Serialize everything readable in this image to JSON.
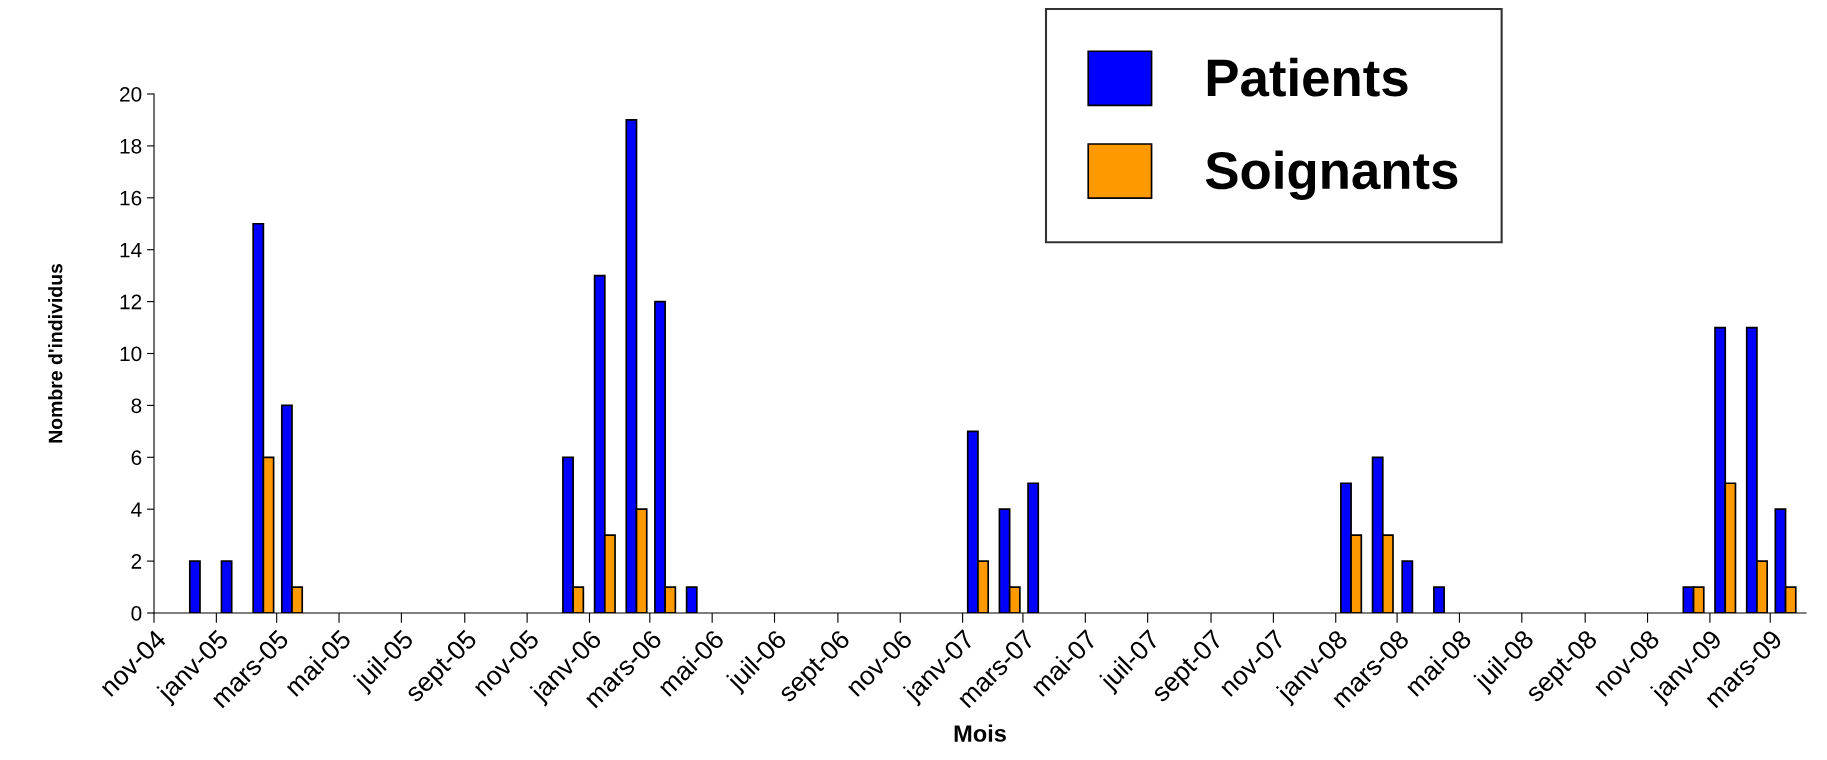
{
  "chart_data": {
    "type": "bar",
    "xlabel": "Mois",
    "ylabel": "Nombre d'individus",
    "x": [
      "2004-12-16",
      "2005-01-16",
      "2005-02-16",
      "2005-03-16",
      "2005-12-16",
      "2006-01-16",
      "2006-02-16",
      "2006-03-16",
      "2006-04-16",
      "2007-01-16",
      "2007-02-16",
      "2007-03-16",
      "2008-01-16",
      "2008-02-16",
      "2008-03-16",
      "2008-04-16",
      "2008-12-16",
      "2009-01-16",
      "2009-02-16",
      "2009-03-16"
    ],
    "series": [
      {
        "name": "Patients",
        "color": "#0000ff",
        "values": [
          2,
          2,
          15,
          8,
          6,
          13,
          19,
          12,
          1,
          7,
          4,
          5,
          5,
          6,
          2,
          1,
          1,
          11,
          11,
          4
        ]
      },
      {
        "name": "Soignants",
        "color": "#ff9900",
        "values": [
          null,
          null,
          6,
          1,
          1,
          3,
          4,
          1,
          null,
          2,
          1,
          null,
          3,
          3,
          null,
          null,
          1,
          5,
          2,
          1
        ]
      }
    ],
    "ylim": [
      0,
      20
    ],
    "yticks": [
      0,
      2,
      4,
      6,
      8,
      10,
      12,
      14,
      16,
      18,
      20
    ],
    "xlim": [
      "2004-11-01",
      "2009-04-05"
    ],
    "xticks": [
      {
        "value": "2004-11-01",
        "label": "nov-04"
      },
      {
        "value": "2005-01-01",
        "label": "janv-05"
      },
      {
        "value": "2005-03-01",
        "label": "mars-05"
      },
      {
        "value": "2005-05-01",
        "label": "mai-05"
      },
      {
        "value": "2005-07-01",
        "label": "juil-05"
      },
      {
        "value": "2005-09-01",
        "label": "sept-05"
      },
      {
        "value": "2005-11-01",
        "label": "nov-05"
      },
      {
        "value": "2006-01-01",
        "label": "janv-06"
      },
      {
        "value": "2006-03-01",
        "label": "mars-06"
      },
      {
        "value": "2006-05-01",
        "label": "mai-06"
      },
      {
        "value": "2006-07-01",
        "label": "juil-06"
      },
      {
        "value": "2006-09-01",
        "label": "sept-06"
      },
      {
        "value": "2006-11-01",
        "label": "nov-06"
      },
      {
        "value": "2007-01-01",
        "label": "janv-07"
      },
      {
        "value": "2007-03-01",
        "label": "mars-07"
      },
      {
        "value": "2007-05-01",
        "label": "mai-07"
      },
      {
        "value": "2007-07-01",
        "label": "juil-07"
      },
      {
        "value": "2007-09-01",
        "label": "sept-07"
      },
      {
        "value": "2007-11-01",
        "label": "nov-07"
      },
      {
        "value": "2008-01-01",
        "label": "janv-08"
      },
      {
        "value": "2008-03-01",
        "label": "mars-08"
      },
      {
        "value": "2008-05-01",
        "label": "mai-08"
      },
      {
        "value": "2008-07-01",
        "label": "juil-08"
      },
      {
        "value": "2008-09-01",
        "label": "sept-08"
      },
      {
        "value": "2008-11-01",
        "label": "nov-08"
      },
      {
        "value": "2009-01-01",
        "label": "janv-09"
      },
      {
        "value": "2009-03-01",
        "label": "mars-09"
      }
    ],
    "grid": false,
    "legend": "top right"
  }
}
